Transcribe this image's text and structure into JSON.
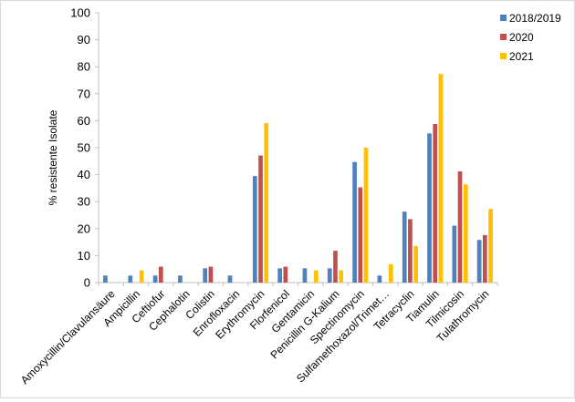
{
  "chart_data": {
    "type": "bar",
    "ylabel": "% resistente  Isolate",
    "ylim": [
      0,
      100
    ],
    "yticks": [
      0,
      10,
      20,
      30,
      40,
      50,
      60,
      70,
      80,
      90,
      100
    ],
    "grid": false,
    "legend_position": "top-right",
    "categories": [
      "Amoxycillin/Clavulansäure",
      "Ampicillin",
      "Ceftiofur",
      "Cephalotin",
      "Colistin",
      "Enrofloxacin",
      "Erythromycin",
      "Florfenicol",
      "Gentamicin",
      "Penicillin G-Kalium",
      "Spectinomycin",
      "Sulfamethoxazol/Trimet…",
      "Tetracyclin",
      "Tiamulin",
      "Tilmicosin",
      "Tulathromycin"
    ],
    "series": [
      {
        "name": "2018/2019",
        "color": "#4f81bd",
        "values": [
          2.6,
          2.6,
          2.6,
          2.6,
          5.3,
          2.6,
          39.5,
          5.3,
          5.3,
          5.3,
          44.7,
          2.6,
          26.3,
          55.3,
          21.1,
          15.8
        ]
      },
      {
        "name": "2020",
        "color": "#c0504d",
        "values": [
          0,
          0,
          5.9,
          0,
          5.9,
          0,
          47.1,
          5.9,
          0,
          11.8,
          35.3,
          0,
          23.5,
          58.8,
          41.2,
          17.6
        ]
      },
      {
        "name": "2021",
        "color": "#ffc000",
        "values": [
          0,
          4.5,
          0,
          0,
          0,
          0,
          59.1,
          0,
          4.5,
          4.5,
          50.0,
          6.8,
          13.6,
          77.3,
          36.4,
          27.3
        ]
      }
    ]
  }
}
